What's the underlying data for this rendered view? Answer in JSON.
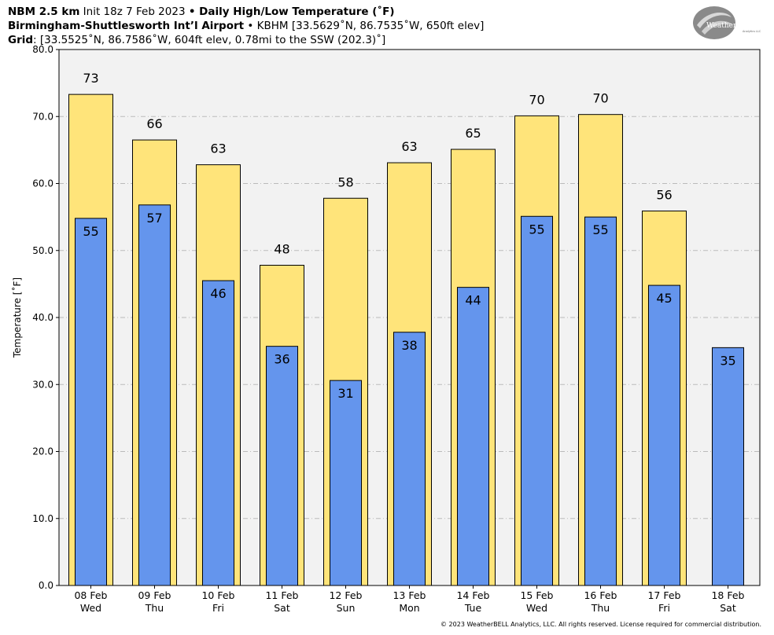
{
  "header": {
    "line1_bold_a": "NBM 2.5 km",
    "line1_plain_a": " Init 18z 7 Feb 2023 ",
    "line1_bullet": "•",
    "line1_bold_b": " Daily High/Low Temperature (˚F)",
    "line2_bold": "Birmingham-Shuttlesworth Int’l Airport",
    "line2_plain": " • KBHM [33.5629˚N, 86.7535˚W, 650ft elev]",
    "line3_bold": "Grid",
    "line3_plain": ": [33.5525˚N, 86.7586˚W, 604ft elev, 0.78mi to the SSW (202.3)˚]"
  },
  "logo": {
    "text": "WeatherBELL",
    "subtext": "Analytics LLC"
  },
  "footer": "© 2023 WeatherBELL Analytics, LLC. All rights reserved. License required for commercial distribution.",
  "colors": {
    "high": "#FFE47A",
    "low": "#6495ED",
    "plot_bg": "#F2F2F2",
    "grid": "#BBBBBB"
  },
  "chart_data": {
    "type": "bar",
    "ylabel": "Temperature [˚F]",
    "ylim": [
      0,
      80
    ],
    "yticks": [
      "0.0",
      "10.0",
      "20.0",
      "30.0",
      "40.0",
      "50.0",
      "60.0",
      "70.0",
      "80.0"
    ],
    "grid": true,
    "categories": [
      [
        "08 Feb",
        "Wed"
      ],
      [
        "09 Feb",
        "Thu"
      ],
      [
        "10 Feb",
        "Fri"
      ],
      [
        "11 Feb",
        "Sat"
      ],
      [
        "12 Feb",
        "Sun"
      ],
      [
        "13 Feb",
        "Mon"
      ],
      [
        "14 Feb",
        "Tue"
      ],
      [
        "15 Feb",
        "Wed"
      ],
      [
        "16 Feb",
        "Thu"
      ],
      [
        "17 Feb",
        "Fri"
      ],
      [
        "18 Feb",
        "Sat"
      ]
    ],
    "series": [
      {
        "key": "high",
        "values": [
          73.3,
          66.5,
          62.8,
          47.8,
          57.8,
          63.1,
          65.1,
          70.1,
          70.3,
          55.9,
          null
        ],
        "labels": [
          "73",
          "66",
          "63",
          "48",
          "58",
          "63",
          "65",
          "70",
          "70",
          "56",
          ""
        ]
      },
      {
        "key": "low",
        "values": [
          54.8,
          56.8,
          45.5,
          35.7,
          30.6,
          37.8,
          44.5,
          55.1,
          55.0,
          44.8,
          35.5
        ],
        "labels": [
          "55",
          "57",
          "46",
          "36",
          "31",
          "38",
          "44",
          "55",
          "55",
          "45",
          "35"
        ]
      }
    ]
  }
}
